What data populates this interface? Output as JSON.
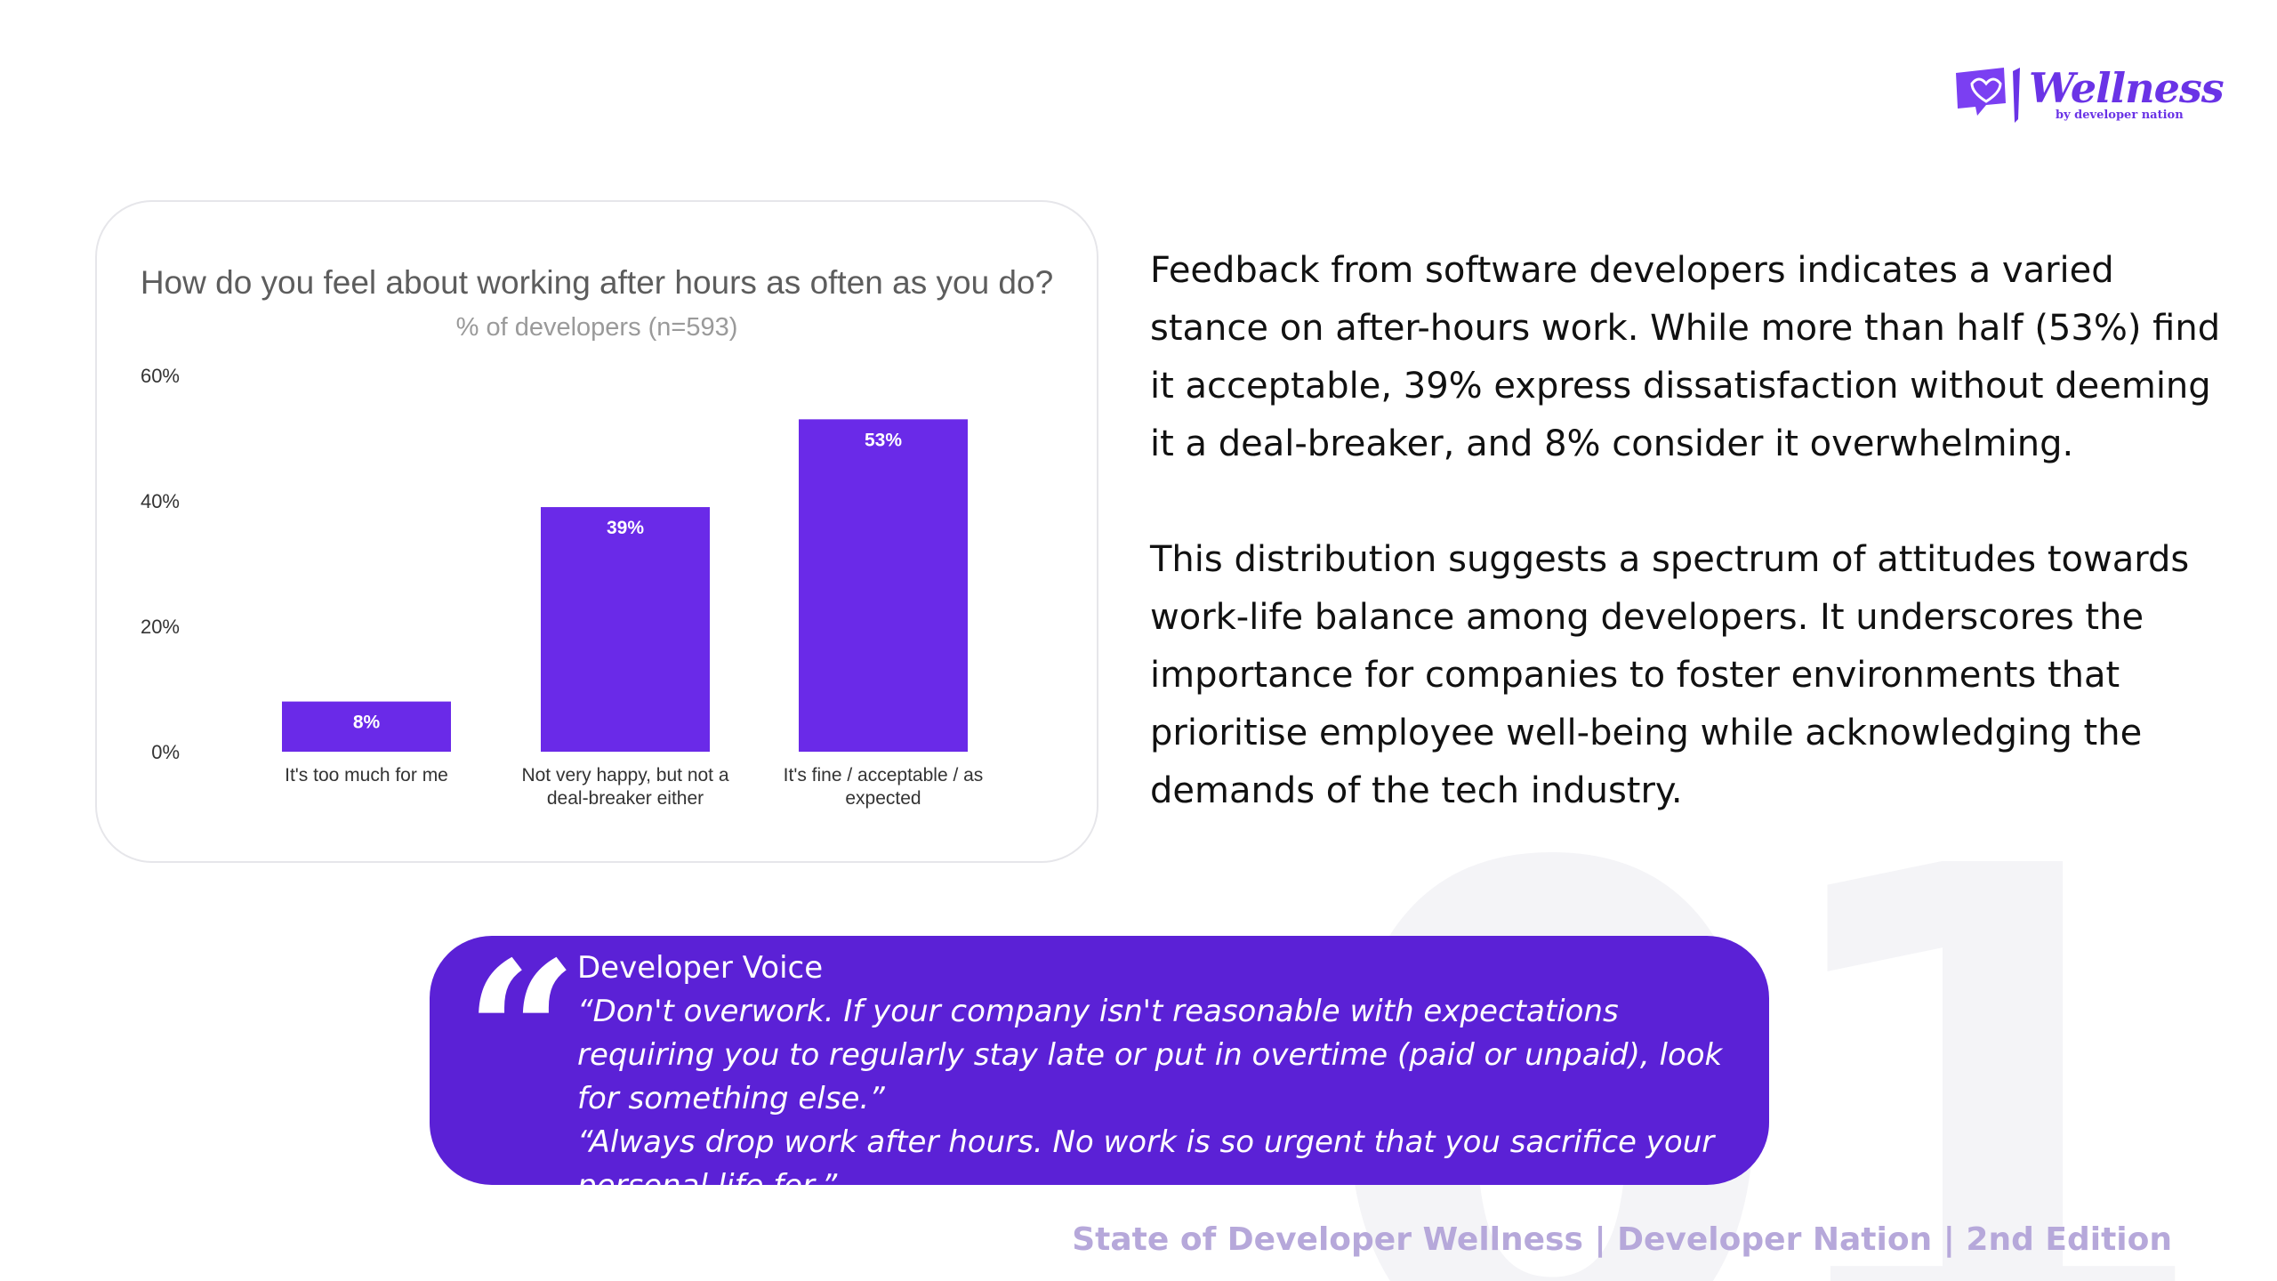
{
  "watermark": "01",
  "logo": {
    "word": "Wellness",
    "sub": "by developer nation"
  },
  "chart_data": {
    "type": "bar",
    "title": "How do you feel about working after hours as often as you do?",
    "subtitle": "% of developers (n=593)",
    "categories": [
      "It's too much for me",
      "Not very happy, but not a deal-breaker either",
      "It's fine / acceptable / as expected"
    ],
    "category_lines": [
      [
        "It's too much for me"
      ],
      [
        "Not very happy, but not a",
        "deal-breaker either"
      ],
      [
        "It's fine / acceptable / as",
        "expected"
      ]
    ],
    "values": [
      8,
      39,
      53
    ],
    "value_labels": [
      "8%",
      "39%",
      "53%"
    ],
    "ylim": [
      0,
      60
    ],
    "yticks": [
      0,
      20,
      40,
      60
    ],
    "ytick_labels": [
      "0%",
      "20%",
      "40%",
      "60%"
    ],
    "xlabel": "",
    "ylabel": "",
    "grid": false,
    "bar_color": "#6a2ae8"
  },
  "body": {
    "paragraph1": "Feedback from software developers indicates a varied stance on after-hours work. While more than half (53%) find it acceptable, 39% express dissatisfaction without deeming it a deal-breaker, and 8% consider it overwhelming.",
    "paragraph2": "This distribution suggests a spectrum of attitudes towards work-life balance among developers. It underscores the importance for companies to foster environments that prioritise employee well-being while acknowledging the demands of the tech industry."
  },
  "quote": {
    "mark": "“",
    "label": "Developer Voice",
    "quote1": "“Don't overwork. If your company isn't reasonable with expectations requiring you to regularly stay late or put in overtime (paid or unpaid), look for something else.”",
    "quote2": "“Always drop work after hours. No work is so urgent that you sacrifice your personal life for.”"
  },
  "footer": "State of Developer Wellness | Developer Nation | 2nd Edition",
  "colors": {
    "accent": "#5b21d6",
    "bar": "#6a2ae8",
    "footer": "#b6a8da"
  }
}
